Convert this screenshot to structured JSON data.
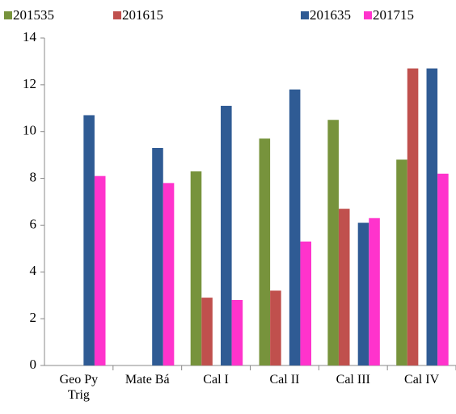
{
  "chart_data": {
    "type": "bar",
    "categories": [
      "Geo Py Trig",
      "Mate Bá",
      "Cal I",
      "Cal II",
      "Cal III",
      "Cal IV"
    ],
    "series": [
      {
        "name": "201535",
        "color": "#77933c",
        "values": [
          null,
          null,
          8.3,
          9.7,
          10.5,
          8.8
        ]
      },
      {
        "name": "201615",
        "color": "#c0504d",
        "values": [
          null,
          null,
          2.9,
          3.2,
          6.7,
          12.7
        ]
      },
      {
        "name": "201635",
        "color": "#2f5b94",
        "values": [
          10.7,
          9.3,
          11.1,
          11.8,
          6.1,
          12.7
        ]
      },
      {
        "name": "201715",
        "color": "#ff33cc",
        "values": [
          8.1,
          7.8,
          2.8,
          5.3,
          6.3,
          8.2
        ]
      }
    ],
    "ylim": [
      0,
      14
    ],
    "yticks": [
      0,
      2,
      4,
      6,
      8,
      10,
      12,
      14
    ],
    "grid": false
  }
}
